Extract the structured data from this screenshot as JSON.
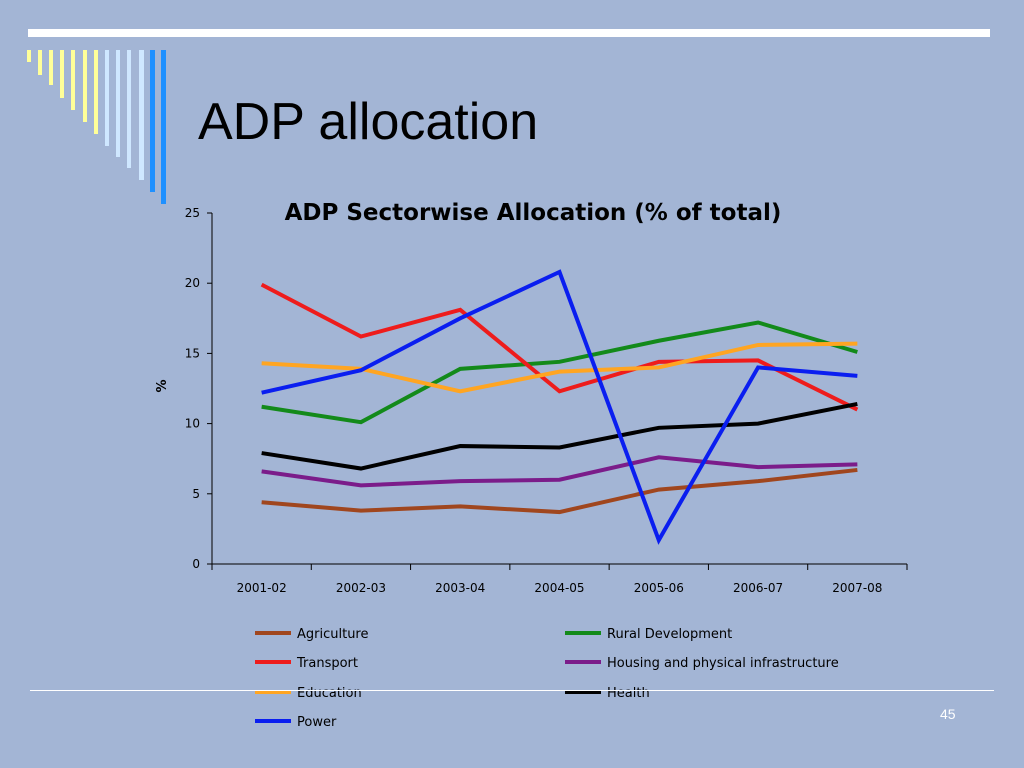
{
  "slide": {
    "title": "ADP allocation",
    "page_number": "45",
    "deco_colors": [
      "#ffff99",
      "#ffff99",
      "#ffff99",
      "#ffff99",
      "#ffff99",
      "#ffff99",
      "#ffff99",
      "#cfe7ff",
      "#cfe7ff",
      "#cfe7ff",
      "#cfe7ff",
      "#1e90ff",
      "#1e90ff",
      "#1e90ff"
    ]
  },
  "chart_data": {
    "type": "line",
    "title": "ADP Sectorwise Allocation (% of total)",
    "xlabel": "",
    "ylabel": "%",
    "categories": [
      "2001-02",
      "2002-03",
      "2003-04",
      "2004-05",
      "2005-06",
      "2006-07",
      "2007-08"
    ],
    "ylim": [
      0,
      25
    ],
    "yticks": [
      0,
      5,
      10,
      15,
      20,
      25
    ],
    "grid": false,
    "legend_position": "bottom",
    "series": [
      {
        "name": "Agriculture",
        "color": "#a0461e",
        "values": [
          4.4,
          3.8,
          4.1,
          3.7,
          5.3,
          5.9,
          6.7
        ]
      },
      {
        "name": "Rural Development",
        "color": "#138a1a",
        "values": [
          11.2,
          10.1,
          13.9,
          14.4,
          15.9,
          17.2,
          15.1
        ]
      },
      {
        "name": "Transport",
        "color": "#ee1c1c",
        "values": [
          19.9,
          16.2,
          18.1,
          12.3,
          14.4,
          14.5,
          11.0
        ]
      },
      {
        "name": "Housing and physical infrastructure",
        "color": "#7b1c8a",
        "values": [
          6.6,
          5.6,
          5.9,
          6.0,
          7.6,
          6.9,
          7.1
        ]
      },
      {
        "name": "Education",
        "color": "#ffa522",
        "values": [
          14.3,
          13.9,
          12.3,
          13.7,
          14.0,
          15.6,
          15.7
        ]
      },
      {
        "name": "Health",
        "color": "#000000",
        "values": [
          7.9,
          6.8,
          8.4,
          8.3,
          9.7,
          10.0,
          11.4
        ]
      },
      {
        "name": "Power",
        "color": "#0a1ef0",
        "values": [
          12.2,
          13.8,
          17.5,
          20.8,
          1.7,
          14.0,
          13.4
        ]
      }
    ]
  }
}
